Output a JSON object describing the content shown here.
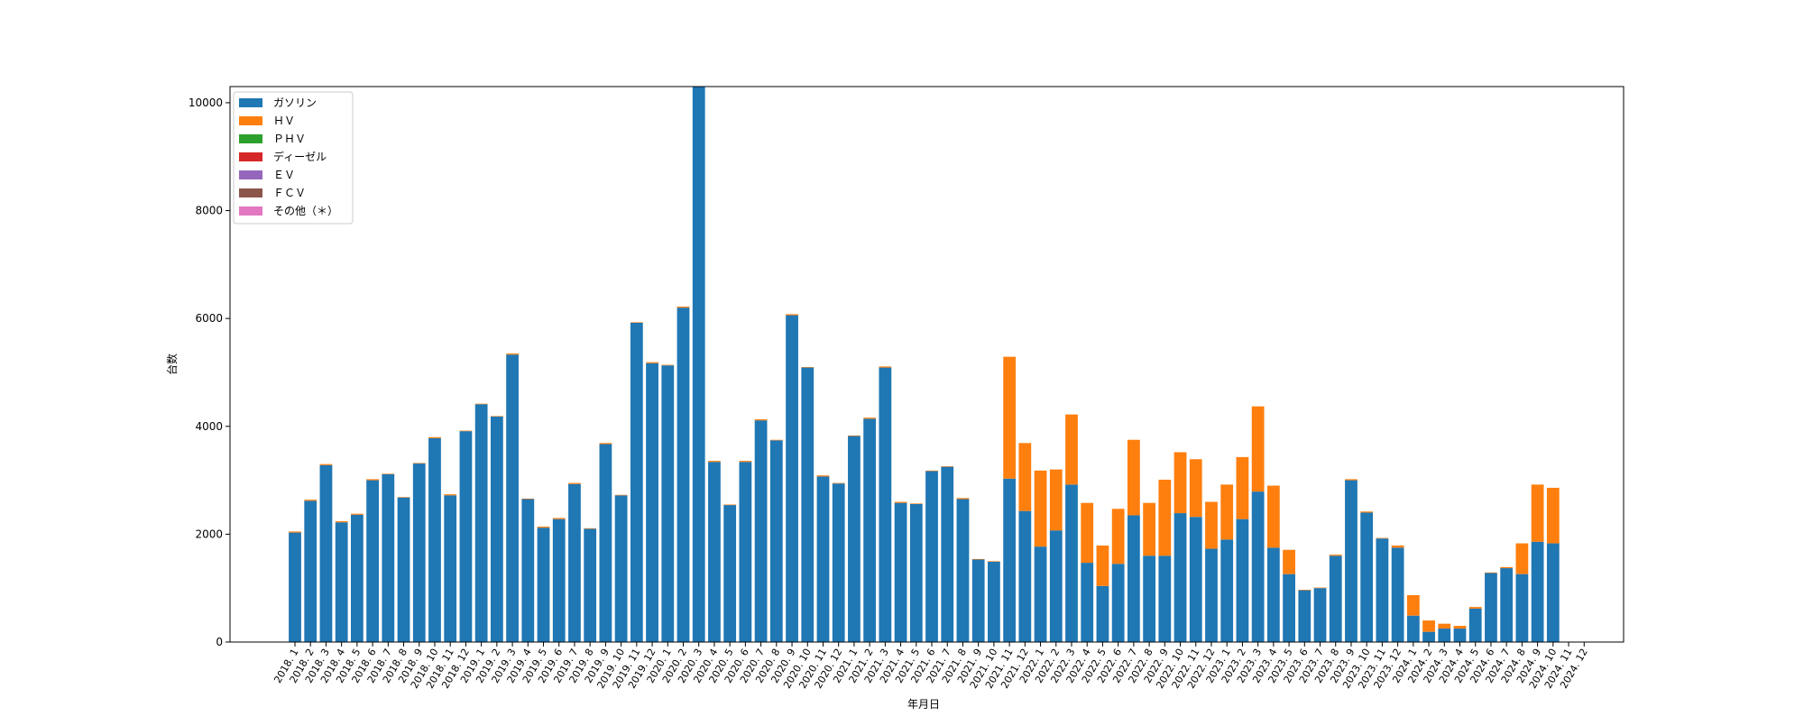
{
  "chart_data": {
    "type": "bar",
    "stacked": true,
    "x_label": "年月日",
    "y_label": "台数",
    "categories": [
      "2018. 1",
      "2018. 2",
      "2018. 3",
      "2018. 4",
      "2018. 5",
      "2018. 6",
      "2018. 7",
      "2018. 8",
      "2018. 9",
      "2018. 10",
      "2018. 11",
      "2018. 12",
      "2019. 1",
      "2019. 2",
      "2019. 3",
      "2019. 4",
      "2019. 5",
      "2019. 6",
      "2019. 7",
      "2019. 8",
      "2019. 9",
      "2019. 10",
      "2019. 11",
      "2019. 12",
      "2020. 1",
      "2020. 2",
      "2020. 3",
      "2020. 4",
      "2020. 5",
      "2020. 6",
      "2020. 7",
      "2020. 8",
      "2020. 9",
      "2020. 10",
      "2020. 11",
      "2020. 12",
      "2021. 1",
      "2021. 2",
      "2021. 3",
      "2021. 4",
      "2021. 5",
      "2021. 6",
      "2021. 7",
      "2021. 8",
      "2021. 9",
      "2021. 10",
      "2021. 11",
      "2021. 12",
      "2022. 1",
      "2022. 2",
      "2022. 3",
      "2022. 4",
      "2022. 5",
      "2022. 6",
      "2022. 7",
      "2022. 8",
      "2022. 9",
      "2022. 10",
      "2022. 11",
      "2022. 12",
      "2023. 1",
      "2023. 2",
      "2023. 3",
      "2023. 4",
      "2023. 5",
      "2023. 6",
      "2023. 7",
      "2023. 8",
      "2023. 9",
      "2023. 10",
      "2023. 11",
      "2023. 12",
      "2024. 1",
      "2024. 2",
      "2024. 3",
      "2024. 4",
      "2024. 5",
      "2024. 6",
      "2024. 7",
      "2024. 8",
      "2024. 9",
      "2024. 10",
      "2024. 11",
      "2024. 12"
    ],
    "series": [
      {
        "name": "ガソリン",
        "color": "#1f77b4",
        "values": [
          2030,
          2620,
          3280,
          2220,
          2360,
          3000,
          3110,
          2680,
          3310,
          3780,
          2720,
          3910,
          4410,
          4180,
          5330,
          2650,
          2120,
          2280,
          2930,
          2100,
          3670,
          2720,
          5920,
          5170,
          5130,
          6200,
          10500,
          3340,
          2540,
          3340,
          4110,
          3740,
          6060,
          5090,
          3070,
          2940,
          3820,
          4140,
          5090,
          2580,
          2560,
          3170,
          3250,
          2650,
          1530,
          1490,
          3030,
          2430,
          1770,
          2070,
          2920,
          1470,
          1040,
          1450,
          2350,
          1600,
          1600,
          2390,
          2320,
          1730,
          1900,
          2280,
          2790,
          1750,
          1260,
          960,
          1000,
          1600,
          3000,
          2400,
          1920,
          1750,
          490,
          190,
          250,
          250,
          620,
          1280,
          1370,
          1260,
          1860,
          1830,
          0,
          0
        ]
      },
      {
        "name": "ＨＶ",
        "color": "#ff7f0e",
        "values": [
          20,
          20,
          20,
          20,
          20,
          20,
          10,
          10,
          10,
          20,
          20,
          10,
          10,
          10,
          20,
          10,
          20,
          20,
          20,
          10,
          20,
          10,
          10,
          20,
          10,
          20,
          0,
          20,
          10,
          20,
          20,
          10,
          20,
          10,
          20,
          10,
          10,
          20,
          20,
          20,
          10,
          10,
          10,
          20,
          10,
          10,
          2260,
          1260,
          1410,
          1130,
          1300,
          1110,
          750,
          1020,
          1400,
          980,
          1410,
          1130,
          1070,
          870,
          1020,
          1150,
          1580,
          1150,
          450,
          10,
          10,
          20,
          20,
          20,
          10,
          40,
          380,
          210,
          90,
          50,
          30,
          10,
          20,
          570,
          1060,
          1030,
          0,
          0
        ]
      },
      {
        "name": "ＰＨＶ",
        "color": "#2ca02c",
        "values": [
          0,
          0,
          0,
          0,
          0,
          0,
          0,
          0,
          0,
          0,
          0,
          0,
          0,
          0,
          0,
          0,
          0,
          0,
          0,
          0,
          0,
          0,
          0,
          0,
          0,
          0,
          0,
          0,
          0,
          0,
          0,
          0,
          0,
          0,
          0,
          0,
          0,
          0,
          0,
          0,
          0,
          0,
          0,
          0,
          0,
          0,
          0,
          0,
          0,
          0,
          0,
          0,
          0,
          0,
          0,
          0,
          0,
          0,
          0,
          0,
          0,
          0,
          0,
          0,
          0,
          0,
          0,
          0,
          0,
          0,
          0,
          0,
          0,
          0,
          0,
          0,
          0,
          0,
          0,
          0,
          0,
          0,
          0,
          0
        ]
      },
      {
        "name": "ディーゼル",
        "color": "#d62728",
        "values": [
          0,
          0,
          0,
          0,
          0,
          0,
          0,
          0,
          0,
          0,
          0,
          0,
          0,
          0,
          0,
          0,
          0,
          0,
          0,
          0,
          0,
          0,
          0,
          0,
          0,
          0,
          0,
          0,
          0,
          0,
          0,
          0,
          0,
          0,
          0,
          0,
          0,
          0,
          0,
          0,
          0,
          0,
          0,
          0,
          0,
          0,
          0,
          0,
          0,
          0,
          0,
          0,
          0,
          0,
          0,
          0,
          0,
          0,
          0,
          0,
          0,
          0,
          0,
          0,
          0,
          0,
          0,
          0,
          0,
          0,
          0,
          0,
          0,
          0,
          0,
          0,
          0,
          0,
          0,
          0,
          0,
          0,
          0,
          0
        ]
      },
      {
        "name": "ＥＶ",
        "color": "#9467bd",
        "values": [
          0,
          0,
          0,
          0,
          0,
          0,
          0,
          0,
          0,
          0,
          0,
          0,
          0,
          0,
          0,
          0,
          0,
          0,
          0,
          0,
          0,
          0,
          0,
          0,
          0,
          0,
          0,
          0,
          0,
          0,
          0,
          0,
          0,
          0,
          0,
          0,
          0,
          0,
          0,
          0,
          0,
          0,
          0,
          0,
          0,
          0,
          0,
          0,
          0,
          0,
          0,
          0,
          0,
          0,
          0,
          0,
          0,
          0,
          0,
          0,
          0,
          0,
          0,
          0,
          0,
          0,
          0,
          0,
          0,
          0,
          0,
          0,
          0,
          0,
          0,
          0,
          0,
          0,
          0,
          0,
          0,
          0,
          0,
          0
        ]
      },
      {
        "name": "ＦＣＶ",
        "color": "#8c564b",
        "values": [
          0,
          0,
          0,
          0,
          0,
          0,
          0,
          0,
          0,
          0,
          0,
          0,
          0,
          0,
          0,
          0,
          0,
          0,
          0,
          0,
          0,
          0,
          0,
          0,
          0,
          0,
          0,
          0,
          0,
          0,
          0,
          0,
          0,
          0,
          0,
          0,
          0,
          0,
          0,
          0,
          0,
          0,
          0,
          0,
          0,
          0,
          0,
          0,
          0,
          0,
          0,
          0,
          0,
          0,
          0,
          0,
          0,
          0,
          0,
          0,
          0,
          0,
          0,
          0,
          0,
          0,
          0,
          0,
          0,
          0,
          0,
          0,
          0,
          0,
          0,
          0,
          0,
          0,
          0,
          0,
          0,
          0,
          0,
          0
        ]
      },
      {
        "name": "その他（＊）",
        "color": "#e377c2",
        "values": [
          0,
          0,
          0,
          0,
          0,
          0,
          0,
          0,
          0,
          0,
          0,
          0,
          0,
          0,
          0,
          0,
          0,
          0,
          0,
          0,
          0,
          0,
          0,
          0,
          0,
          0,
          0,
          0,
          0,
          0,
          0,
          0,
          0,
          0,
          0,
          0,
          0,
          0,
          0,
          0,
          0,
          0,
          0,
          0,
          0,
          0,
          0,
          0,
          0,
          0,
          0,
          0,
          0,
          0,
          0,
          0,
          0,
          0,
          0,
          0,
          0,
          0,
          0,
          0,
          0,
          0,
          0,
          0,
          0,
          0,
          0,
          0,
          0,
          0,
          0,
          0,
          0,
          0,
          0,
          0,
          0,
          0,
          0,
          0
        ]
      }
    ],
    "ylim": [
      0,
      10300
    ],
    "yticks": [
      0,
      2000,
      4000,
      6000,
      8000,
      10000
    ],
    "legend": "upper left"
  }
}
